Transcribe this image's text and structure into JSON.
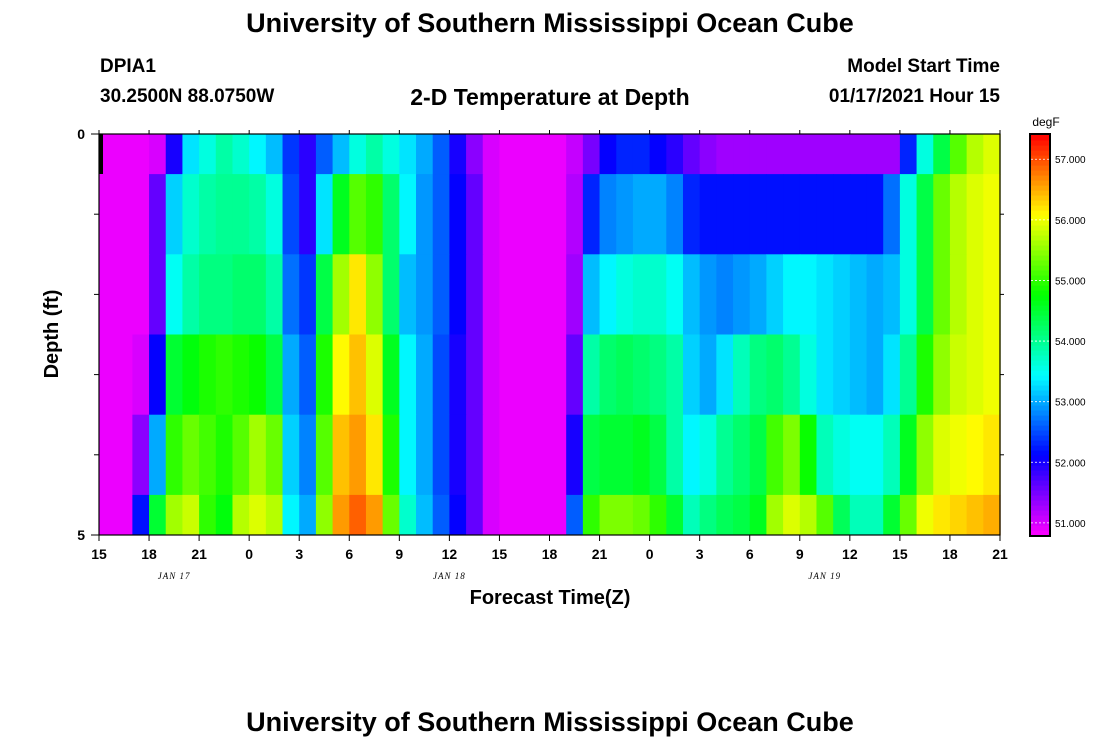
{
  "title": "University of Southern Mississippi Ocean Cube",
  "footer_title": "University of Southern Mississippi Ocean Cube",
  "station": {
    "id": "DPIA1",
    "coordinates": "30.2500N 88.0750W"
  },
  "model_start": {
    "label": "Model Start Time",
    "value": "01/17/2021 Hour 15"
  },
  "chart_data": {
    "type": "heatmap",
    "title": "2-D Temperature at Depth",
    "xlabel": "Forecast Time(Z)",
    "ylabel": "Depth (ft)",
    "x_range_hours": [
      0,
      54
    ],
    "y_range": [
      0,
      5
    ],
    "y_tick_labels": [
      "0",
      "5"
    ],
    "y_minor_ticks": [
      1,
      2,
      3,
      4
    ],
    "x_tick_labels": [
      "15",
      "18",
      "21",
      "0",
      "3",
      "6",
      "9",
      "12",
      "15",
      "18",
      "21",
      "0",
      "3",
      "6",
      "9",
      "12",
      "15",
      "18",
      "21"
    ],
    "x_tick_hours": [
      0,
      3,
      6,
      9,
      12,
      15,
      18,
      21,
      24,
      27,
      30,
      33,
      36,
      39,
      42,
      45,
      48,
      51,
      54
    ],
    "date_labels": [
      {
        "text": "JAN 17",
        "hour": 4.5
      },
      {
        "text": "JAN 18",
        "hour": 21
      },
      {
        "text": "JAN 19",
        "hour": 43.5
      }
    ],
    "colorbar": {
      "unit": "degF",
      "min": 50.8,
      "max": 57.4,
      "tick_labels": [
        "51.000",
        "52.000",
        "53.000",
        "54.000",
        "55.000",
        "56.000",
        "57.000"
      ],
      "tick_values": [
        51,
        52,
        53,
        54,
        55,
        56,
        57
      ]
    },
    "column_hours": [
      0,
      1,
      2,
      3,
      4,
      5,
      6,
      7,
      8,
      9,
      10,
      11,
      12,
      13,
      14,
      15,
      16,
      17,
      18,
      19,
      20,
      21,
      22,
      23,
      24,
      25,
      26,
      27,
      28,
      29,
      30,
      31,
      32,
      33,
      34,
      35,
      36,
      37,
      38,
      39,
      40,
      41,
      42,
      43,
      44,
      45,
      46,
      47,
      48,
      49,
      50,
      51,
      52,
      53,
      54
    ],
    "rows": [
      {
        "depth_range": [
          0,
          0.5
        ],
        "temps": [
          50.9,
          50.9,
          50.9,
          51.0,
          52.0,
          53.3,
          53.6,
          53.9,
          53.7,
          53.4,
          53.1,
          52.4,
          51.9,
          52.6,
          53.1,
          53.6,
          53.9,
          53.6,
          53.3,
          53.0,
          52.6,
          52.0,
          51.4,
          51.0,
          50.9,
          50.9,
          50.9,
          50.9,
          51.1,
          51.5,
          52.1,
          52.3,
          52.3,
          52.1,
          51.9,
          51.6,
          51.4,
          51.3,
          51.3,
          51.3,
          51.3,
          51.3,
          51.3,
          51.3,
          51.3,
          51.3,
          51.3,
          51.3,
          52.3,
          53.6,
          54.4,
          55.2,
          55.7,
          55.9,
          56.0
        ]
      },
      {
        "depth_range": [
          0.5,
          1.5
        ],
        "temps": [
          50.9,
          50.9,
          50.9,
          51.6,
          53.2,
          53.7,
          53.9,
          54.0,
          54.0,
          53.9,
          53.6,
          52.5,
          51.9,
          53.3,
          54.6,
          55.2,
          55.0,
          54.2,
          53.4,
          52.9,
          52.6,
          52.1,
          51.6,
          51.0,
          50.9,
          50.9,
          50.9,
          50.9,
          51.2,
          52.3,
          52.8,
          52.9,
          53.0,
          53.0,
          52.8,
          52.3,
          52.2,
          52.2,
          52.2,
          52.2,
          52.2,
          52.2,
          52.2,
          52.2,
          52.2,
          52.2,
          52.2,
          52.7,
          53.6,
          54.4,
          55.3,
          55.7,
          55.9,
          56.0,
          56.1
        ]
      },
      {
        "depth_range": [
          1.5,
          2.5
        ],
        "temps": [
          50.9,
          50.9,
          50.9,
          51.6,
          53.5,
          53.9,
          54.1,
          54.1,
          54.2,
          54.2,
          53.9,
          52.7,
          52.4,
          54.4,
          55.6,
          56.2,
          55.5,
          54.2,
          53.1,
          52.9,
          52.6,
          52.1,
          51.6,
          51.0,
          50.9,
          50.9,
          50.9,
          50.9,
          51.3,
          53.1,
          53.4,
          53.6,
          53.7,
          53.7,
          53.5,
          53.1,
          52.9,
          52.8,
          52.9,
          53.0,
          53.2,
          53.4,
          53.4,
          53.3,
          53.2,
          53.1,
          53.0,
          53.1,
          53.6,
          54.4,
          55.3,
          55.7,
          55.9,
          56.0,
          56.1
        ]
      },
      {
        "depth_range": [
          2.5,
          3.5
        ],
        "temps": [
          50.9,
          50.9,
          51.0,
          52.1,
          54.5,
          54.7,
          54.9,
          55.0,
          54.9,
          54.8,
          54.4,
          53.0,
          52.6,
          54.9,
          56.1,
          56.4,
          55.9,
          54.6,
          53.4,
          53.0,
          52.5,
          52.0,
          51.6,
          51.0,
          50.9,
          50.9,
          50.9,
          50.9,
          51.6,
          53.9,
          54.2,
          54.3,
          54.2,
          54.1,
          53.9,
          53.2,
          53.0,
          53.3,
          53.8,
          54.1,
          54.2,
          54.0,
          53.6,
          53.3,
          53.2,
          53.1,
          53.0,
          53.3,
          54.0,
          54.9,
          55.5,
          55.8,
          55.9,
          56.0,
          56.1
        ]
      },
      {
        "depth_range": [
          3.5,
          4.5
        ],
        "temps": [
          50.9,
          50.9,
          51.4,
          53.0,
          55.0,
          55.3,
          55.1,
          54.9,
          55.2,
          55.6,
          55.3,
          53.2,
          52.8,
          55.2,
          56.4,
          56.6,
          56.2,
          54.9,
          53.4,
          53.0,
          52.5,
          52.0,
          51.6,
          51.0,
          50.9,
          50.9,
          50.9,
          50.9,
          52.0,
          54.4,
          54.5,
          54.5,
          54.6,
          54.4,
          53.9,
          53.4,
          53.6,
          54.0,
          54.2,
          54.4,
          55.1,
          55.4,
          54.8,
          53.8,
          53.6,
          53.5,
          53.5,
          53.8,
          54.6,
          55.5,
          55.9,
          56.0,
          56.1,
          56.2,
          56.3
        ]
      },
      {
        "depth_range": [
          4.5,
          5
        ],
        "temps": [
          50.9,
          50.9,
          52.2,
          54.5,
          55.6,
          55.8,
          55.0,
          54.7,
          55.7,
          55.9,
          55.7,
          53.4,
          53.0,
          55.5,
          56.6,
          56.9,
          56.6,
          55.3,
          53.7,
          53.1,
          52.6,
          52.1,
          51.6,
          51.0,
          50.9,
          50.9,
          50.9,
          50.9,
          52.6,
          55.0,
          55.4,
          55.4,
          55.3,
          55.0,
          54.5,
          53.8,
          54.1,
          54.3,
          54.4,
          54.6,
          55.6,
          55.9,
          55.7,
          55.2,
          54.3,
          53.8,
          53.8,
          54.5,
          55.3,
          56.0,
          56.2,
          56.3,
          56.4,
          56.5,
          56.6
        ]
      }
    ]
  }
}
